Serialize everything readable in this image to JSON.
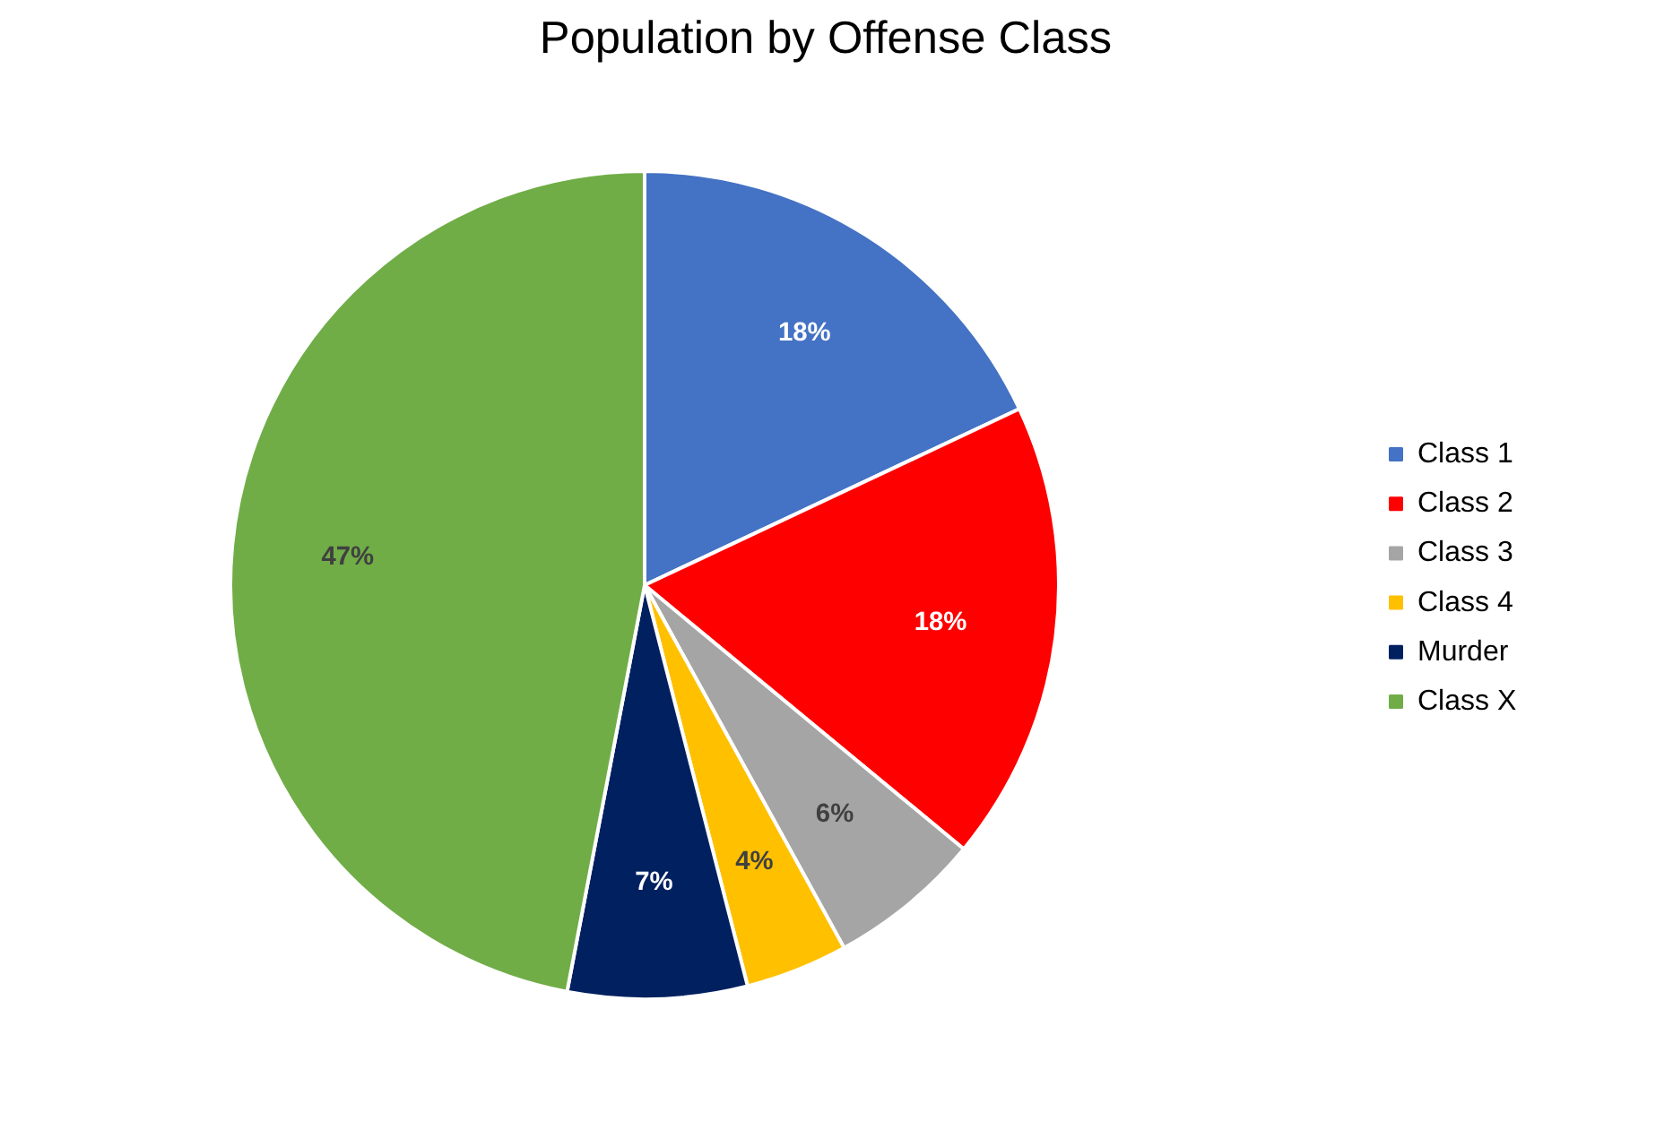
{
  "chart_data": {
    "type": "pie",
    "title": "Population by Offense Class",
    "categories": [
      "Class 1",
      "Class 2",
      "Class 3",
      "Class 4",
      "Murder",
      "Class X"
    ],
    "values": [
      18,
      18,
      6,
      4,
      7,
      47
    ],
    "colors": [
      "#4472c4",
      "#ff0000",
      "#a5a5a5",
      "#ffc000",
      "#002060",
      "#70ad47"
    ],
    "value_labels": [
      "18%",
      "18%",
      "6%",
      "4%",
      "7%",
      "47%"
    ],
    "legend": "right"
  }
}
